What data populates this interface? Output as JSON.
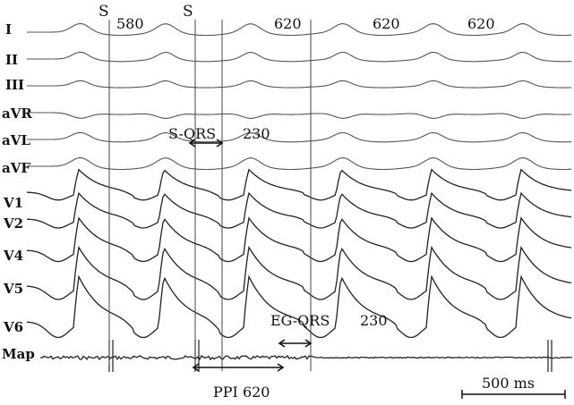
{
  "leads": [
    "I",
    "II",
    "III",
    "aVR",
    "aVL",
    "aVF",
    "V1",
    "V2",
    "V4",
    "V5",
    "V6",
    "Map"
  ],
  "stimuli": [
    "S",
    "S"
  ],
  "cycle_lengths": [
    "580",
    "620",
    "620",
    "620"
  ],
  "annotations": {
    "s_qrs_label": "S-QRS",
    "s_qrs_value": "230",
    "eg_qrs_label": "EG-QRS",
    "eg_qrs_value": "230",
    "ppi_label": "PPI 620",
    "scale_label": "500 ms"
  },
  "colors": {
    "trace": "#555555",
    "text": "#111111",
    "background": "#ffffff"
  }
}
